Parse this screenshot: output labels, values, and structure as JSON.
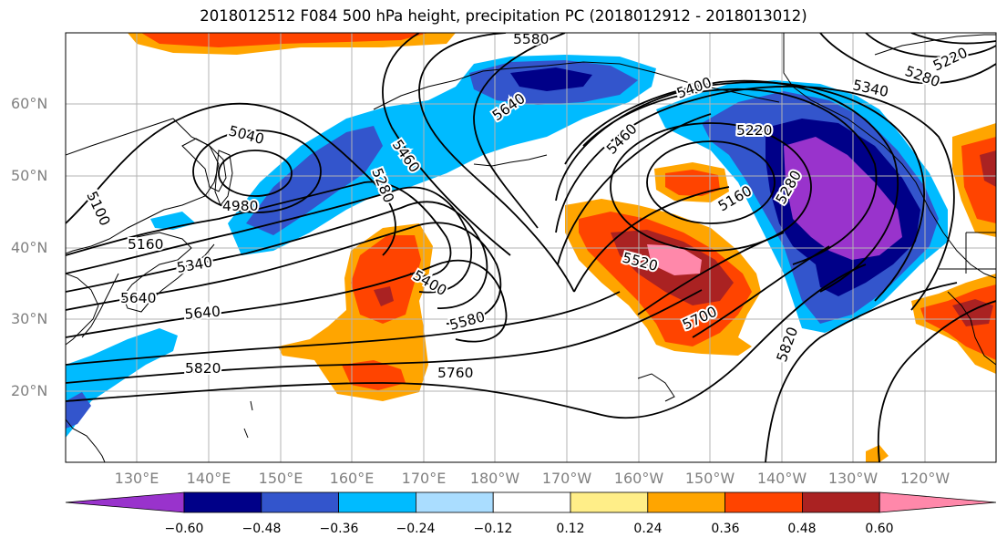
{
  "title": "2018012512 F084 500 hPa height, precipitation PC (2018012912 - 2018013012)",
  "lat_labels": [
    "60°N",
    "50°N",
    "40°N",
    "30°N",
    "20°N"
  ],
  "lon_labels": [
    "130°E",
    "140°E",
    "150°E",
    "160°E",
    "170°E",
    "180°W",
    "170°W",
    "160°W",
    "150°W",
    "140°W",
    "130°W",
    "120°W"
  ],
  "colorbar": {
    "ticks": [
      "−0.60",
      "−0.48",
      "−0.36",
      "−0.24",
      "−0.12",
      "0.12",
      "0.24",
      "0.36",
      "0.48",
      "0.60"
    ],
    "colors": [
      "#9933cc",
      "#000088",
      "#3355cc",
      "#00bbff",
      "#aaddff",
      "#ffffff",
      "#ffee88",
      "#ffa500",
      "#ff4400",
      "#aa2222",
      "#ff88aa"
    ]
  },
  "contour_labels": [
    "5580",
    "5220",
    "5280",
    "5340",
    "5040",
    "5460",
    "5640",
    "5400",
    "5220",
    "4980",
    "5100",
    "5280",
    "5160",
    "5160",
    "5340",
    "5280",
    "5460",
    "5520",
    "5700",
    "5400",
    "5640",
    "5580",
    "5820",
    "5820",
    "5760",
    "5640"
  ]
}
